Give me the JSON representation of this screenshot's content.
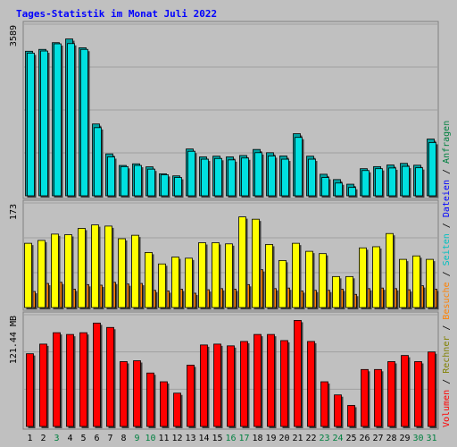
{
  "chart_data": {
    "type": "bar",
    "title": "Tages-Statistik im Monat Juli 2022",
    "categories": [
      "1",
      "2",
      "3",
      "4",
      "5",
      "6",
      "7",
      "8",
      "9",
      "10",
      "11",
      "12",
      "13",
      "14",
      "15",
      "16",
      "17",
      "18",
      "19",
      "20",
      "21",
      "22",
      "23",
      "24",
      "25",
      "26",
      "27",
      "28",
      "29",
      "30",
      "31"
    ],
    "weekend_days": [
      "3",
      "9",
      "10",
      "16",
      "17",
      "23",
      "24",
      "30",
      "31"
    ],
    "panels": [
      {
        "ymax_label": "3589",
        "ylim": [
          0,
          3589
        ],
        "series": [
          {
            "name": "Seiten",
            "color": "#00e0e0",
            "values": [
              3080,
              3125,
              3280,
              3285,
              3160,
              1470,
              840,
              630,
              655,
              575,
              455,
              395,
              960,
              790,
              805,
              775,
              815,
              930,
              860,
              790,
              1260,
              790,
              395,
              275,
              180,
              545,
              585,
              600,
              635,
              605,
              1150
            ]
          },
          {
            "name": "Anfragen",
            "color": "#00a0a0",
            "values": [
              3120,
              3160,
              3305,
              3385,
              3195,
              1550,
              905,
              655,
              690,
              625,
              475,
              430,
              1010,
              840,
              855,
              840,
              870,
              1000,
              930,
              860,
              1340,
              855,
              465,
              350,
              250,
              585,
              630,
              665,
              700,
              660,
              1225
            ]
          }
        ]
      },
      {
        "ymax_label": "173",
        "ylim": [
          0,
          173
        ],
        "series": [
          {
            "name": "Dateien",
            "color": "#ffff00",
            "values": [
              112,
              117,
              128,
              127,
              138,
              144,
              142,
              120,
              126,
              96,
              76,
              88,
              86,
              113,
              113,
              111,
              158,
              154,
              110,
              82,
              112,
              98,
              94,
              54,
              54,
              104,
              106,
              129,
              84,
              90,
              84
            ]
          },
          {
            "name": "Besuche",
            "color": "#ff8000",
            "values": [
              28,
              42,
              44,
              32,
              40,
              39,
              44,
              41,
              42,
              30,
              29,
              32,
              25,
              31,
              33,
              32,
              40,
              66,
              33,
              34,
              29,
              30,
              30,
              32,
              23,
              33,
              34,
              33,
              31,
              38,
              32
            ]
          }
        ]
      },
      {
        "ymax_label": "121.44 MB",
        "ylim": [
          0,
          121.44
        ],
        "series": [
          {
            "name": "Volumen",
            "color": "#ff0000",
            "values": [
              83,
              94,
              107,
              105,
              107,
              118,
              113,
              74,
              75,
              61,
              51,
              38,
              70,
              93,
              94,
              92,
              97,
              105,
              105,
              98,
              121,
              97,
              51,
              36,
              24,
              65,
              65,
              74,
              81,
              74,
              85
            ]
          }
        ]
      }
    ],
    "side_legend": [
      {
        "text": "Volumen",
        "color": "#ff0000"
      },
      {
        "text": "Rechner",
        "color": "#808000"
      },
      {
        "text": "Besuche",
        "color": "#ff8000"
      },
      {
        "text": "Seiten",
        "color": "#00c0c0"
      },
      {
        "text": "Dateien",
        "color": "#0000ff"
      },
      {
        "text": "Anfragen",
        "color": "#008040"
      }
    ],
    "legend_separator": " / ",
    "colors": {
      "background": "#c0c0c0",
      "title": "#0000ff",
      "weekday_label": "#000000",
      "weekend_label": "#008040",
      "grid": "#a0a0a0",
      "axis": "#000000"
    },
    "grid": true
  }
}
